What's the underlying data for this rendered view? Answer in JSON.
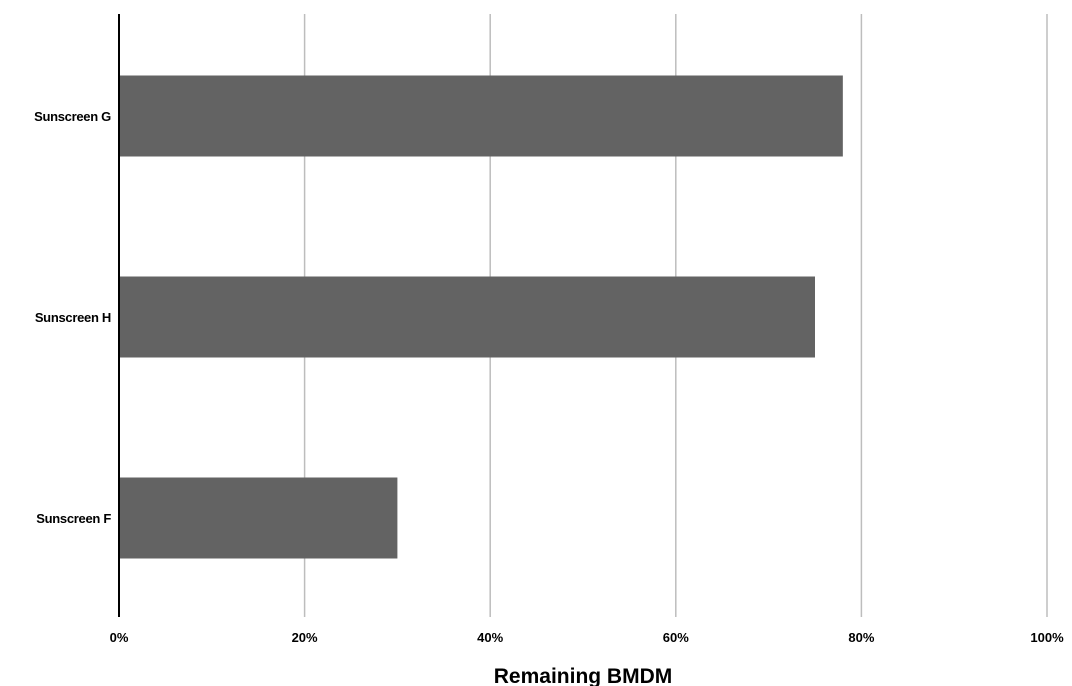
{
  "chart_data": {
    "type": "bar",
    "orientation": "horizontal",
    "categories": [
      "Sunscreen G",
      "Sunscreen H",
      "Sunscreen F"
    ],
    "values": [
      78,
      75,
      30
    ],
    "value_unit": "%",
    "title": "",
    "xlabel": "Remaining BMDM",
    "ylabel": "",
    "xlim": [
      0,
      100
    ],
    "xticks": [
      "0%",
      "20%",
      "40%",
      "60%",
      "80%",
      "100%"
    ],
    "grid": true,
    "legend": "none",
    "colors": {
      "bar": "#636363",
      "gridline": "#bdbdbd",
      "axis": "#000000"
    }
  }
}
